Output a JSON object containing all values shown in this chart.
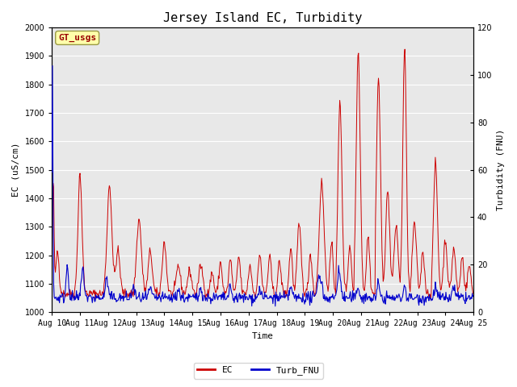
{
  "title": "Jersey Island EC, Turbidity",
  "xlabel": "Time",
  "ylabel_left": "EC (uS/cm)",
  "ylabel_right": "Turbidity (FNU)",
  "annotation": "GT_usgs",
  "ec_ylim": [
    1000,
    2000
  ],
  "turb_ylim": [
    0,
    120
  ],
  "plot_bg_color": "#e8e8e8",
  "ec_color": "#cc0000",
  "turb_color": "#0000cc",
  "legend_ec": "EC",
  "legend_turb": "Turb_FNU",
  "x_tick_labels": [
    "Aug 10",
    "Aug 11",
    "Aug 12",
    "Aug 13",
    "Aug 14",
    "Aug 15",
    "Aug 16",
    "Aug 17",
    "Aug 18",
    "Aug 19",
    "Aug 20",
    "Aug 21",
    "Aug 22",
    "Aug 23",
    "Aug 24",
    "Aug 25"
  ],
  "n_points": 720,
  "title_fontsize": 11,
  "axis_label_fontsize": 8,
  "tick_fontsize": 7,
  "legend_fontsize": 8
}
